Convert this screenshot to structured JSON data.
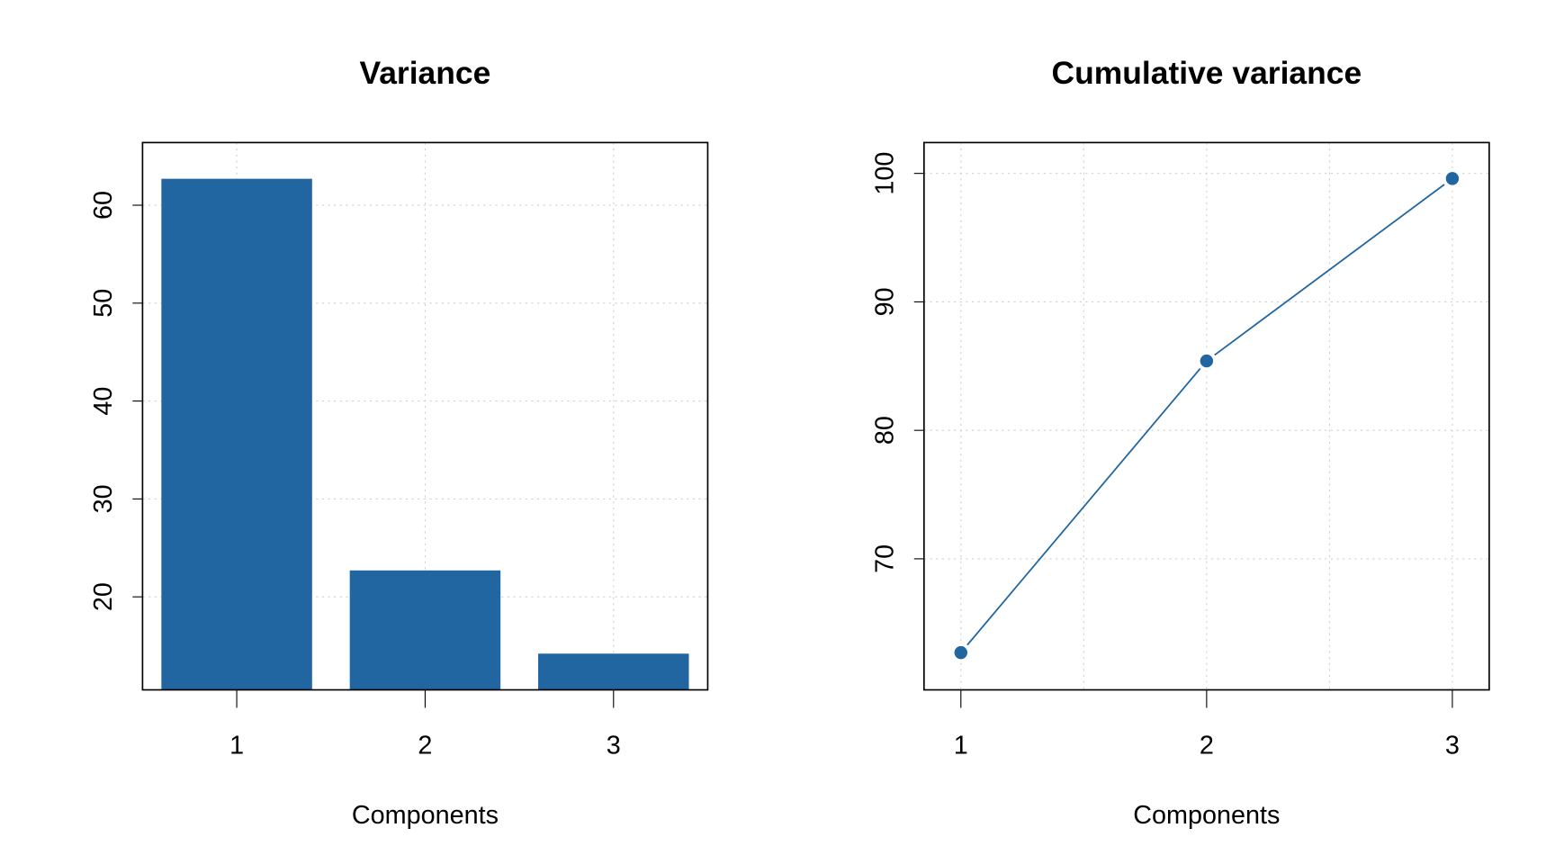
{
  "chart_data": [
    {
      "type": "bar",
      "title": "Variance",
      "xlabel": "Components",
      "categories": [
        "1",
        "2",
        "3"
      ],
      "values": [
        62.7,
        22.7,
        14.2
      ],
      "color": "#2166a1",
      "ylim": [
        10.5,
        66.4
      ],
      "yticks": [
        20,
        30,
        40,
        50,
        60
      ],
      "grid": true
    },
    {
      "type": "line",
      "title": "Cumulative variance",
      "xlabel": "Components",
      "x": [
        1,
        2,
        3
      ],
      "values": [
        62.7,
        85.4,
        99.6
      ],
      "color": "#2166a1",
      "xlim": [
        0.85,
        3.15
      ],
      "xticks": [
        1,
        2,
        3
      ],
      "xgrid": [
        1,
        1.5,
        2,
        2.5,
        3
      ],
      "ylim": [
        59.8,
        102.4
      ],
      "yticks": [
        70,
        80,
        90,
        100
      ],
      "grid": true
    }
  ]
}
